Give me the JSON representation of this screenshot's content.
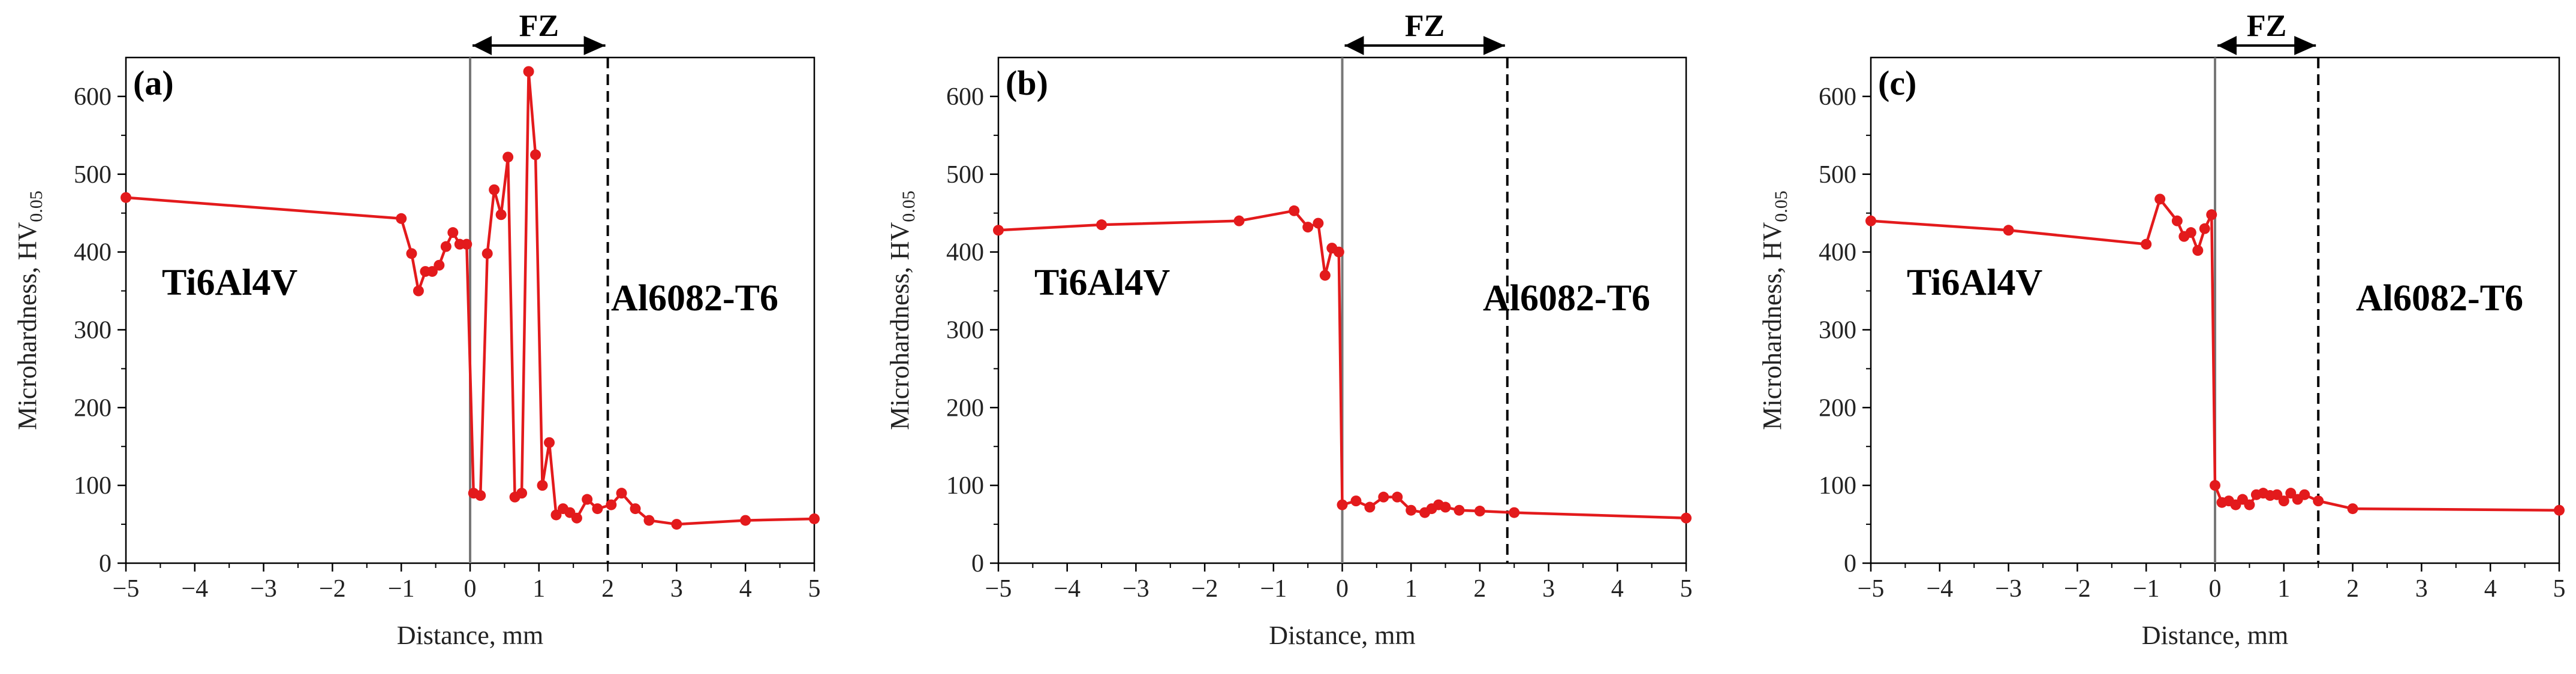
{
  "figure": {
    "x_axis_title": "Distance, mm",
    "y_axis_title_main": "Microhardness, HV",
    "y_axis_title_sub": "0.05",
    "colors": {
      "series": "#e31a1c",
      "axis": "#000000",
      "zero_line": "#777777"
    }
  },
  "chart_data": [
    {
      "type": "line",
      "panel_label": "(a)",
      "title": "",
      "xlabel": "Distance, mm",
      "ylabel": "Microhardness, HV0.05",
      "xlim": [
        -5,
        5
      ],
      "ylim": [
        0,
        650
      ],
      "x_ticks": [
        -5,
        -4,
        -3,
        -2,
        -1,
        0,
        1,
        2,
        3,
        4,
        5
      ],
      "y_ticks": [
        0,
        100,
        200,
        300,
        400,
        500,
        600
      ],
      "left_material": "Ti6Al4V",
      "right_material": "Al6082-T6",
      "fz_label": "FZ",
      "fz_range": [
        0,
        2.0
      ],
      "series": [
        {
          "name": "Microhardness",
          "x": [
            -5,
            -1.0,
            -0.85,
            -0.75,
            -0.65,
            -0.55,
            -0.45,
            -0.35,
            -0.25,
            -0.15,
            -0.05,
            0.05,
            0.15,
            0.25,
            0.35,
            0.45,
            0.55,
            0.65,
            0.75,
            0.85,
            0.95,
            1.05,
            1.15,
            1.25,
            1.35,
            1.45,
            1.55,
            1.7,
            1.85,
            2.05,
            2.2,
            2.4,
            2.6,
            3.0,
            4.0,
            5.0
          ],
          "y": [
            470,
            443,
            398,
            350,
            375,
            375,
            383,
            407,
            425,
            410,
            410,
            90,
            87,
            398,
            480,
            448,
            522,
            85,
            90,
            632,
            525,
            100,
            155,
            62,
            70,
            65,
            58,
            82,
            70,
            75,
            90,
            70,
            55,
            50,
            55,
            57
          ]
        }
      ]
    },
    {
      "type": "line",
      "panel_label": "(b)",
      "title": "",
      "xlabel": "Distance, mm",
      "ylabel": "Microhardness, HV0.05",
      "xlim": [
        -5,
        5
      ],
      "ylim": [
        0,
        650
      ],
      "x_ticks": [
        -5,
        -4,
        -3,
        -2,
        -1,
        0,
        1,
        2,
        3,
        4,
        5
      ],
      "y_ticks": [
        0,
        100,
        200,
        300,
        400,
        500,
        600
      ],
      "left_material": "Ti6Al4V",
      "right_material": "Al6082-T6",
      "fz_label": "FZ",
      "fz_range": [
        0,
        2.4
      ],
      "series": [
        {
          "name": "Microhardness",
          "x": [
            -5,
            -3.5,
            -1.5,
            -0.7,
            -0.5,
            -0.35,
            -0.25,
            -0.15,
            -0.05,
            0.0,
            0.2,
            0.4,
            0.6,
            0.8,
            1.0,
            1.2,
            1.3,
            1.4,
            1.5,
            1.7,
            2.0,
            2.5,
            5.0
          ],
          "y": [
            428,
            435,
            440,
            453,
            432,
            437,
            370,
            405,
            400,
            75,
            80,
            72,
            85,
            85,
            68,
            65,
            70,
            75,
            72,
            68,
            67,
            65,
            58
          ]
        }
      ]
    },
    {
      "type": "line",
      "panel_label": "(c)",
      "title": "",
      "xlabel": "Distance, mm",
      "ylabel": "Microhardness, HV0.05",
      "xlim": [
        -5,
        5
      ],
      "ylim": [
        0,
        650
      ],
      "x_ticks": [
        -5,
        -4,
        -3,
        -2,
        -1,
        0,
        1,
        2,
        3,
        4,
        5
      ],
      "y_ticks": [
        0,
        100,
        200,
        300,
        400,
        500,
        600
      ],
      "left_material": "Ti6Al4V",
      "right_material": "Al6082-T6",
      "fz_label": "FZ",
      "fz_range": [
        0,
        1.5
      ],
      "series": [
        {
          "name": "Microhardness",
          "x": [
            -5,
            -3.0,
            -1.0,
            -0.8,
            -0.55,
            -0.45,
            -0.35,
            -0.25,
            -0.15,
            -0.05,
            0.0,
            0.1,
            0.2,
            0.3,
            0.4,
            0.5,
            0.6,
            0.7,
            0.8,
            0.9,
            1.0,
            1.1,
            1.2,
            1.3,
            1.5,
            2.0,
            5.0
          ],
          "y": [
            440,
            428,
            410,
            468,
            440,
            420,
            425,
            402,
            430,
            448,
            100,
            78,
            80,
            75,
            82,
            75,
            88,
            90,
            87,
            88,
            80,
            90,
            82,
            88,
            80,
            70,
            68
          ]
        }
      ]
    }
  ]
}
